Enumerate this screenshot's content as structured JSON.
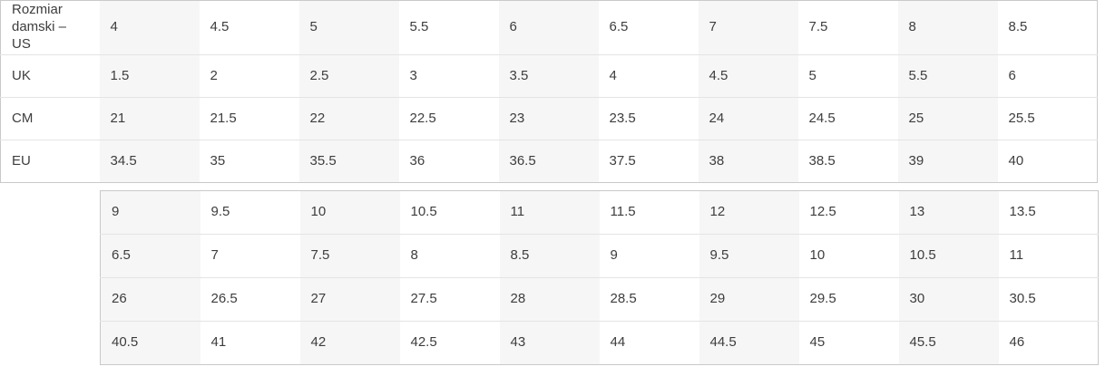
{
  "size_chart": {
    "colors": {
      "cell_shaded": "#f6f6f6",
      "cell_plain": "#ffffff",
      "border_outer": "#c9c9c9",
      "border_inner": "#e4e4e4",
      "text": "#3d3d3d"
    },
    "table1": {
      "row_labels": [
        "Rozmiar damski – US",
        "UK",
        "CM",
        "EU"
      ],
      "rows": [
        [
          "4",
          "4.5",
          "5",
          "5.5",
          "6",
          "6.5",
          "7",
          "7.5",
          "8",
          "8.5"
        ],
        [
          "1.5",
          "2",
          "2.5",
          "3",
          "3.5",
          "4",
          "4.5",
          "5",
          "5.5",
          "6"
        ],
        [
          "21",
          "21.5",
          "22",
          "22.5",
          "23",
          "23.5",
          "24",
          "24.5",
          "25",
          "25.5"
        ],
        [
          "34.5",
          "35",
          "35.5",
          "36",
          "36.5",
          "37.5",
          "38",
          "38.5",
          "39",
          "40"
        ]
      ]
    },
    "table2": {
      "rows": [
        [
          "9",
          "9.5",
          "10",
          "10.5",
          "11",
          "11.5",
          "12",
          "12.5",
          "13",
          "13.5"
        ],
        [
          "6.5",
          "7",
          "7.5",
          "8",
          "8.5",
          "9",
          "9.5",
          "10",
          "10.5",
          "11"
        ],
        [
          "26",
          "26.5",
          "27",
          "27.5",
          "28",
          "28.5",
          "29",
          "29.5",
          "30",
          "30.5"
        ],
        [
          "40.5",
          "41",
          "42",
          "42.5",
          "43",
          "44",
          "44.5",
          "45",
          "45.5",
          "46"
        ]
      ]
    }
  }
}
